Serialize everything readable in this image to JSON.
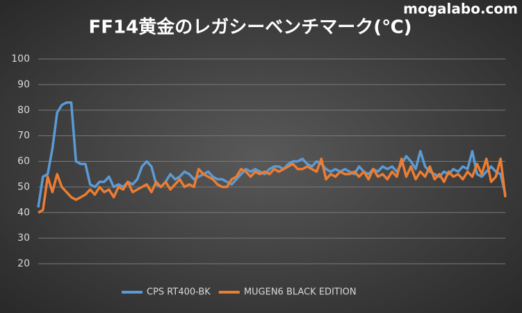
{
  "chart_data": {
    "type": "line",
    "title": "FF14黄金のレガシーベンチマーク(℃)",
    "watermark": "mogalabo.com",
    "ylim": [
      20,
      100
    ],
    "yticks": [
      20,
      30,
      40,
      50,
      60,
      70,
      80,
      90,
      100
    ],
    "grid": true,
    "legend": "bottom",
    "series": [
      {
        "name": "CPS RT400-BK",
        "color": "#5b9bd5",
        "values": [
          42,
          54,
          55,
          65,
          79,
          82,
          83,
          83,
          60,
          59,
          59,
          51,
          50,
          52,
          52,
          54,
          50,
          51,
          50,
          52,
          51,
          53,
          58,
          60,
          58,
          51,
          50,
          52,
          55,
          53,
          54,
          56,
          55,
          53,
          54,
          55,
          56,
          54,
          53,
          53,
          52,
          51,
          53,
          55,
          57,
          56,
          57,
          56,
          55,
          57,
          58,
          58,
          57,
          59,
          60,
          60,
          61,
          59,
          58,
          60,
          59,
          57,
          56,
          57,
          56,
          57,
          56,
          55,
          58,
          56,
          55,
          57,
          56,
          58,
          57,
          58,
          56,
          59,
          62,
          60,
          57,
          64,
          58,
          56,
          55,
          54,
          56,
          55,
          57,
          56,
          58,
          57,
          64,
          55,
          54,
          56,
          58,
          56,
          55,
          47
        ]
      },
      {
        "name": "MUGEN6 BLACK EDITION",
        "color": "#ed7d31",
        "values": [
          40,
          41,
          54,
          48,
          55,
          50,
          48,
          46,
          45,
          46,
          47,
          49,
          47,
          50,
          48,
          49,
          46,
          50,
          49,
          52,
          48,
          49,
          50,
          51,
          48,
          52,
          50,
          52,
          49,
          51,
          53,
          50,
          51,
          50,
          57,
          55,
          54,
          53,
          51,
          50,
          50,
          53,
          54,
          57,
          56,
          54,
          56,
          55,
          56,
          55,
          57,
          56,
          57,
          58,
          59,
          57,
          57,
          58,
          57,
          56,
          61,
          53,
          55,
          54,
          56,
          55,
          55,
          56,
          54,
          56,
          53,
          57,
          54,
          55,
          53,
          56,
          54,
          61,
          54,
          58,
          53,
          56,
          54,
          58,
          53,
          55,
          52,
          56,
          54,
          55,
          53,
          56,
          54,
          59,
          55,
          61,
          52,
          54,
          61,
          46
        ]
      }
    ]
  }
}
